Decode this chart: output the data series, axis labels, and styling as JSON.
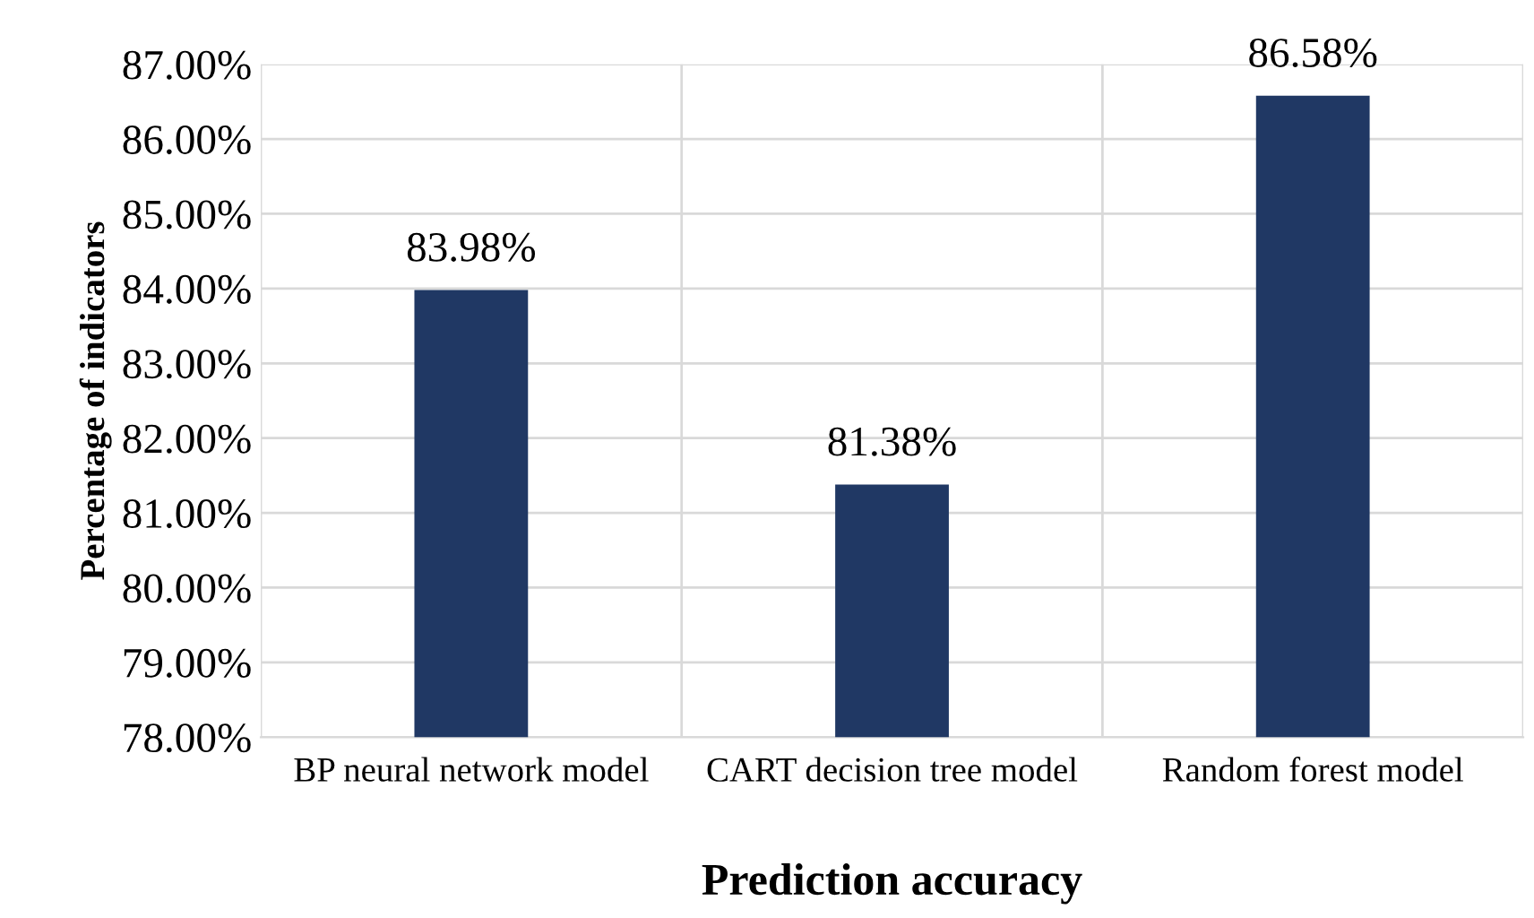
{
  "chart_data": {
    "type": "bar",
    "xlabel": "Prediction accuracy",
    "ylabel": "Percentage of indicators",
    "categories": [
      "BP neural network model",
      "CART decision tree model",
      "Random forest model"
    ],
    "values": [
      83.98,
      81.38,
      86.58
    ],
    "value_labels": [
      "83.98%",
      "81.38%",
      "86.58%"
    ],
    "color": "#203864",
    "ylim": [
      78,
      87
    ],
    "yticks": [
      {
        "value": 78,
        "label": "78.00%"
      },
      {
        "value": 79,
        "label": "79.00%"
      },
      {
        "value": 80,
        "label": "80.00%"
      },
      {
        "value": 81,
        "label": "81.00%"
      },
      {
        "value": 82,
        "label": "82.00%"
      },
      {
        "value": 83,
        "label": "83.00%"
      },
      {
        "value": 84,
        "label": "84.00%"
      },
      {
        "value": 85,
        "label": "85.00%"
      },
      {
        "value": 86,
        "label": "86.00%"
      },
      {
        "value": 87,
        "label": "87.00%"
      }
    ],
    "grid": true
  }
}
